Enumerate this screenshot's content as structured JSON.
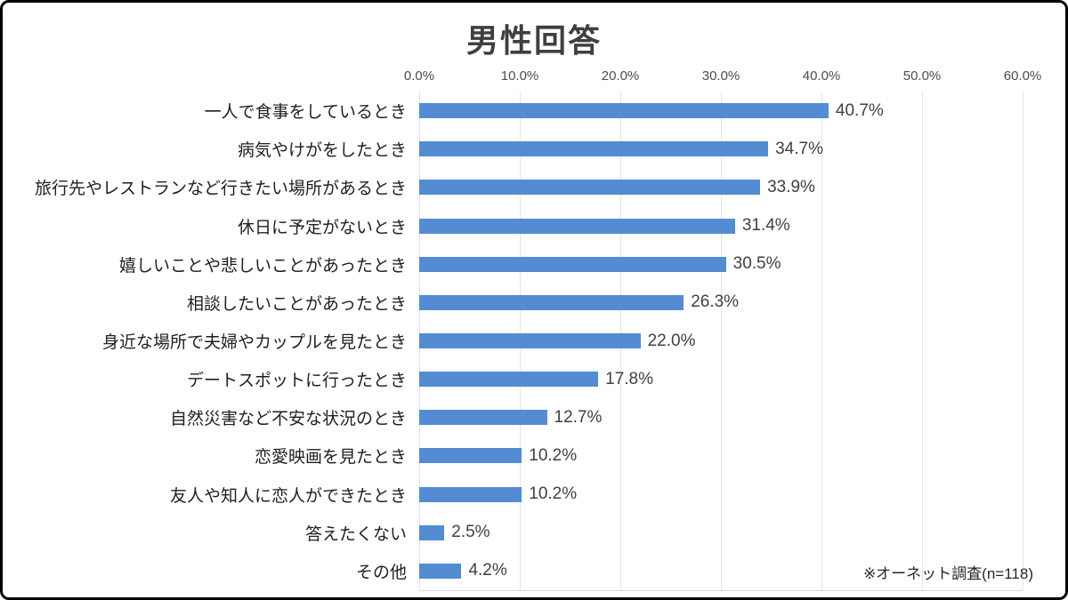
{
  "title": "男性回答",
  "footnote": "※オーネット調査(n=118)",
  "colors": {
    "bar": "#548CD4",
    "gridline": "#E4E4E4",
    "title_text": "#3F3F3F",
    "axis_text": "#4D4D4D",
    "label_text": "#1F1F1F",
    "border": "#000000"
  },
  "chart_data": {
    "type": "bar",
    "orientation": "horizontal",
    "title": "男性回答",
    "categories": [
      "一人で食事をしているとき",
      "病気やけがをしたとき",
      "旅行先やレストランなど行きたい場所があるとき",
      "休日に予定がないとき",
      "嬉しいことや悲しいことがあったとき",
      "相談したいことがあったとき",
      "身近な場所で夫婦やカップルを見たとき",
      "デートスポットに行ったとき",
      "自然災害など不安な状況のとき",
      "恋愛映画を見たとき",
      "友人や知人に恋人ができたとき",
      "答えたくない",
      "その他"
    ],
    "values": [
      40.7,
      34.7,
      33.9,
      31.4,
      30.5,
      26.3,
      22.0,
      17.8,
      12.7,
      10.2,
      10.2,
      2.5,
      4.2
    ],
    "value_labels": [
      "40.7%",
      "34.7%",
      "33.9%",
      "31.4%",
      "30.5%",
      "26.3%",
      "22.0%",
      "17.8%",
      "12.7%",
      "10.2%",
      "10.2%",
      "2.5%",
      "4.2%"
    ],
    "xlabel": "",
    "ylabel": "",
    "xlim": [
      0,
      60
    ],
    "x_ticks": [
      "0.0%",
      "10.0%",
      "20.0%",
      "30.0%",
      "40.0%",
      "50.0%",
      "60.0%"
    ],
    "x_tick_values": [
      0,
      10,
      20,
      30,
      40,
      50,
      60
    ],
    "grid": true,
    "legend": false,
    "annotation": "※オーネット調査(n=118)"
  }
}
